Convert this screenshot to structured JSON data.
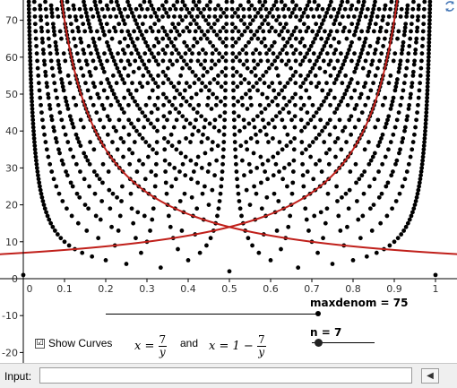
{
  "input_bar": {
    "label": "Input:",
    "value": "",
    "button_icon": "keyboard-icon"
  },
  "refresh_icon": "refresh-icon",
  "colors": {
    "points": "#000000",
    "curve": "#c0201b",
    "axis": "#000000",
    "grid_text": "#333333"
  },
  "sliders": {
    "maxdenom": {
      "label": "maxdenom = 75",
      "value": 75
    },
    "n": {
      "label": "n = 7",
      "value": 7
    }
  },
  "checkbox": {
    "label": "Show Curves",
    "checked": true,
    "check_mark": "☑"
  },
  "formula": {
    "and": "and",
    "x_eq": "x =",
    "x_eq_one_minus": "x = 1 −",
    "numerator": "7",
    "denominator": "y"
  },
  "chart_data": {
    "type": "scatter",
    "title": "",
    "xlabel": "",
    "ylabel": "",
    "xlim": [
      -0.06,
      1.05
    ],
    "ylim": [
      -22.5,
      75
    ],
    "x_ticks": [
      "0",
      "0.1",
      "0.2",
      "0.3",
      "0.4",
      "0.5",
      "0.6",
      "0.7",
      "0.8",
      "0.9",
      "1"
    ],
    "x_tick_values": [
      0,
      0.1,
      0.2,
      0.3,
      0.4,
      0.5,
      0.6,
      0.7,
      0.8,
      0.9,
      1
    ],
    "y_ticks": [
      "-20",
      "-10",
      "0",
      "10",
      "20",
      "30",
      "40",
      "50",
      "60",
      "70"
    ],
    "y_tick_values": [
      -20,
      -10,
      0,
      10,
      20,
      30,
      40,
      50,
      60,
      70
    ],
    "series": [
      {
        "kind": "points",
        "description_of_rule": "reduced fractions p/q plotted at (p/q, q) for q <= maxdenom",
        "maxdenom": 75
      },
      {
        "kind": "curve",
        "equation": "x = n / y",
        "n": 7
      },
      {
        "kind": "curve",
        "equation": "x = 1 - n / y",
        "n": 7
      }
    ],
    "grid": false,
    "legend": "none"
  }
}
